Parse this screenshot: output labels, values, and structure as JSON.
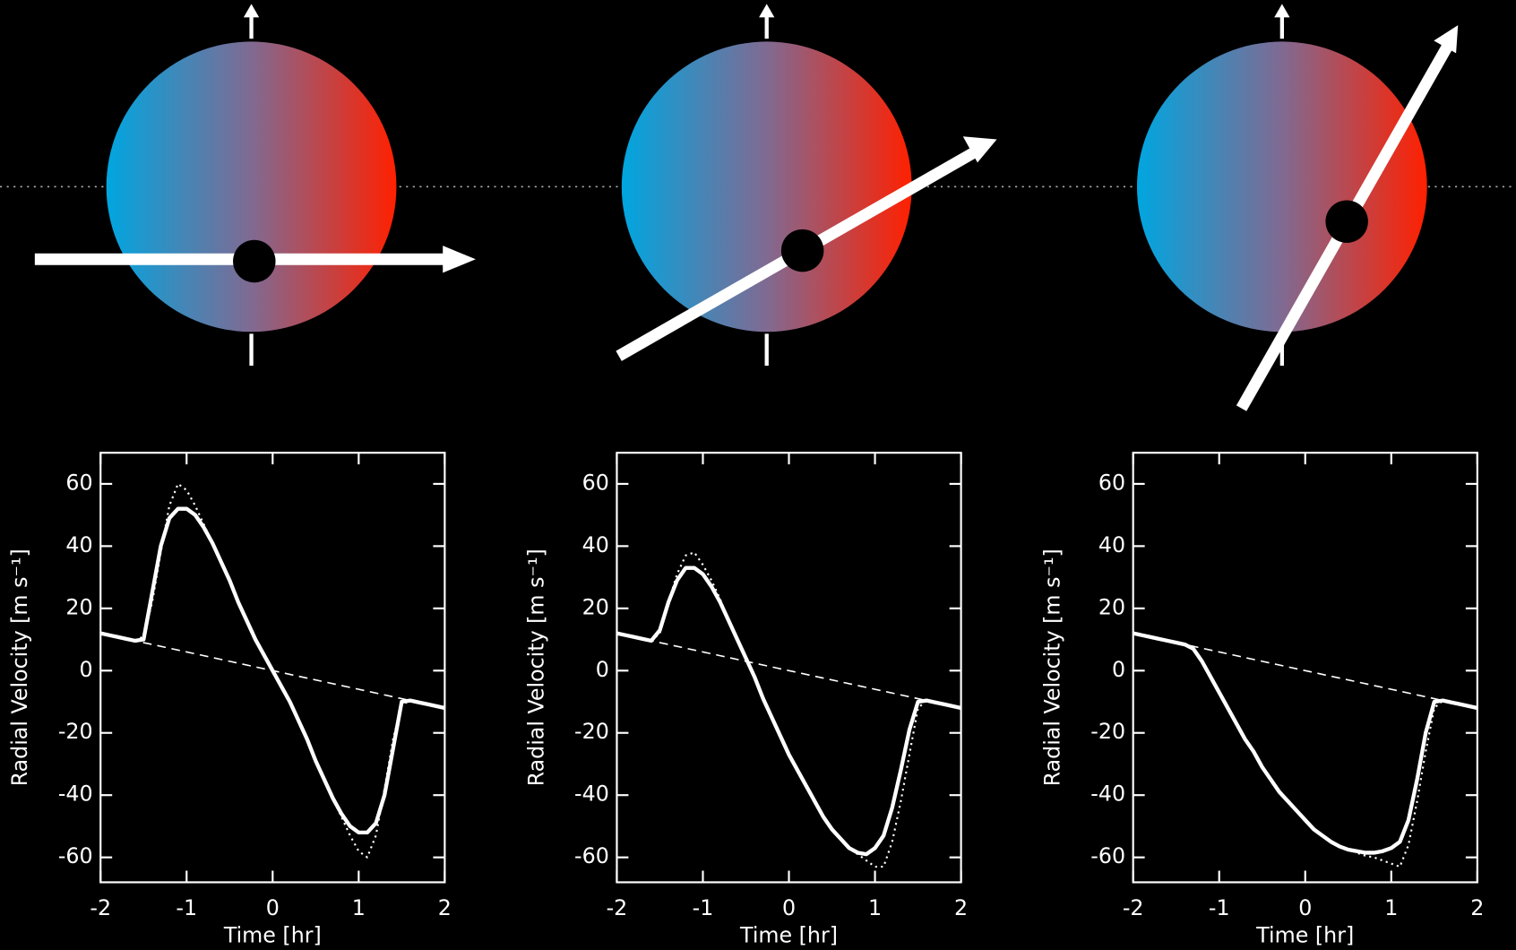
{
  "chart_data": [
    {
      "type": "line",
      "xlabel": "Time [hr]",
      "ylabel": "Radial Velocity [m s⁻¹]",
      "xlim": [
        -2,
        2
      ],
      "ylim": [
        -68,
        70
      ],
      "xticks": [
        -2,
        -1,
        0,
        1,
        2
      ],
      "yticks": [
        -60,
        -40,
        -20,
        0,
        20,
        40,
        60
      ],
      "series": [
        {
          "style": "dashed",
          "color": "#ffffff",
          "x": [
            -2,
            2
          ],
          "values": [
            12,
            -12
          ]
        },
        {
          "style": "dotted",
          "color": "#ffffff",
          "x": [
            -1.6,
            -1.5,
            -1.4,
            -1.3,
            -1.2,
            -1.1,
            -1.0,
            -0.9,
            -0.8,
            -0.7,
            -0.6,
            -0.5,
            -0.4,
            -0.3,
            -0.2,
            -0.1,
            0,
            0.1,
            0.2,
            0.3,
            0.4,
            0.5,
            0.6,
            0.7,
            0.8,
            0.9,
            1.0,
            1.1,
            1.2,
            1.3,
            1.4,
            1.5,
            1.6
          ],
          "values": [
            9.6,
            11,
            22,
            38,
            53,
            60,
            58,
            53,
            47,
            41,
            35,
            29,
            22,
            16,
            10,
            5,
            0,
            -5,
            -10,
            -16,
            -22,
            -29,
            -35,
            -41,
            -47,
            -53,
            -58,
            -60,
            -53,
            -38,
            -22,
            -11,
            -9.6
          ]
        },
        {
          "style": "solid",
          "color": "#ffffff",
          "x": [
            -2,
            -1.9,
            -1.8,
            -1.7,
            -1.6,
            -1.5,
            -1.4,
            -1.3,
            -1.2,
            -1.1,
            -1.0,
            -0.9,
            -0.8,
            -0.7,
            -0.6,
            -0.5,
            -0.4,
            -0.3,
            -0.2,
            -0.1,
            0,
            0.1,
            0.2,
            0.3,
            0.4,
            0.5,
            0.6,
            0.7,
            0.8,
            0.9,
            1.0,
            1.1,
            1.2,
            1.3,
            1.4,
            1.5,
            1.6,
            1.7,
            1.8,
            1.9,
            2
          ],
          "values": [
            12,
            11.4,
            10.8,
            10.2,
            9.6,
            10,
            25,
            40,
            49,
            52,
            52,
            50,
            46,
            41,
            35,
            29,
            22,
            16,
            10,
            5,
            0,
            -5,
            -10,
            -16,
            -22,
            -29,
            -35,
            -41,
            -46,
            -50,
            -52,
            -52,
            -49,
            -40,
            -25,
            -10,
            -9.6,
            -10.2,
            -10.8,
            -11.4,
            -12
          ]
        }
      ]
    },
    {
      "type": "line",
      "xlabel": "Time [hr]",
      "ylabel": "Radial Velocity [m s⁻¹]",
      "xlim": [
        -2,
        2
      ],
      "ylim": [
        -68,
        70
      ],
      "xticks": [
        -2,
        -1,
        0,
        1,
        2
      ],
      "yticks": [
        -60,
        -40,
        -20,
        0,
        20,
        40,
        60
      ],
      "series": [
        {
          "style": "dashed",
          "color": "#ffffff",
          "x": [
            -2,
            2
          ],
          "values": [
            12,
            -12
          ]
        },
        {
          "style": "dotted",
          "color": "#ffffff",
          "x": [
            -1.6,
            -1.5,
            -1.4,
            -1.3,
            -1.2,
            -1.1,
            -1.0,
            -0.9,
            -0.8,
            -0.7,
            -0.6,
            -0.5,
            -0.4,
            -0.3,
            -0.2,
            -0.1,
            0,
            0.1,
            0.2,
            0.3,
            0.4,
            0.5,
            0.6,
            0.7,
            0.8,
            0.9,
            1.0,
            1.1,
            1.2,
            1.3,
            1.4,
            1.5,
            1.6
          ],
          "values": [
            9.6,
            12,
            22,
            31,
            37,
            38,
            34,
            29,
            23,
            16,
            10,
            4,
            -2,
            -9,
            -15,
            -21,
            -27,
            -32,
            -37,
            -42,
            -47,
            -51,
            -54,
            -57,
            -59,
            -61,
            -63,
            -63,
            -55,
            -42,
            -27,
            -12,
            -9.6
          ]
        },
        {
          "style": "solid",
          "color": "#ffffff",
          "x": [
            -2,
            -1.9,
            -1.8,
            -1.7,
            -1.6,
            -1.5,
            -1.4,
            -1.3,
            -1.2,
            -1.1,
            -1.0,
            -0.9,
            -0.8,
            -0.7,
            -0.6,
            -0.5,
            -0.4,
            -0.3,
            -0.2,
            -0.1,
            0,
            0.1,
            0.2,
            0.3,
            0.4,
            0.5,
            0.6,
            0.7,
            0.8,
            0.9,
            1.0,
            1.1,
            1.2,
            1.3,
            1.4,
            1.5,
            1.6,
            1.7,
            1.8,
            1.9,
            2
          ],
          "values": [
            12,
            11.4,
            10.8,
            10.2,
            9.6,
            13,
            22,
            29,
            33,
            33,
            31,
            27,
            22,
            16,
            10,
            4,
            -2,
            -9,
            -15,
            -21,
            -27,
            -32,
            -37,
            -42,
            -47,
            -51,
            -54,
            -57,
            -58.5,
            -59,
            -57,
            -53,
            -44,
            -32,
            -19,
            -10,
            -9.6,
            -10.2,
            -10.8,
            -11.4,
            -12
          ]
        }
      ]
    },
    {
      "type": "line",
      "xlabel": "Time [hr]",
      "ylabel": "Radial Velocity [m s⁻¹]",
      "xlim": [
        -2,
        2
      ],
      "ylim": [
        -68,
        70
      ],
      "xticks": [
        -2,
        -1,
        0,
        1,
        2
      ],
      "yticks": [
        -60,
        -40,
        -20,
        0,
        20,
        40,
        60
      ],
      "series": [
        {
          "style": "dashed",
          "color": "#ffffff",
          "x": [
            -2,
            2
          ],
          "values": [
            12,
            -12
          ]
        },
        {
          "style": "dotted",
          "color": "#ffffff",
          "x": [
            -1.6,
            -1.5,
            -1.4,
            -1.3,
            -1.2,
            -1.1,
            -1.0,
            -0.9,
            -0.8,
            -0.7,
            -0.6,
            -0.5,
            -0.4,
            -0.3,
            -0.2,
            -0.1,
            0,
            0.1,
            0.2,
            0.3,
            0.4,
            0.5,
            0.6,
            0.7,
            0.8,
            0.9,
            1.0,
            1.1,
            1.2,
            1.3,
            1.4,
            1.5,
            1.6
          ],
          "values": [
            9.6,
            9,
            8.4,
            7,
            3,
            -2,
            -7,
            -12,
            -17,
            -22,
            -26,
            -31,
            -35,
            -39,
            -42,
            -45,
            -48,
            -51,
            -53,
            -55,
            -56.5,
            -57.5,
            -58.5,
            -59.5,
            -60,
            -61,
            -62,
            -63,
            -56,
            -42,
            -26,
            -12,
            -9.6
          ]
        },
        {
          "style": "solid",
          "color": "#ffffff",
          "x": [
            -2,
            -1.9,
            -1.8,
            -1.7,
            -1.6,
            -1.5,
            -1.4,
            -1.3,
            -1.2,
            -1.1,
            -1.0,
            -0.9,
            -0.8,
            -0.7,
            -0.6,
            -0.5,
            -0.4,
            -0.3,
            -0.2,
            -0.1,
            0,
            0.1,
            0.2,
            0.3,
            0.4,
            0.5,
            0.6,
            0.7,
            0.8,
            0.9,
            1.0,
            1.1,
            1.2,
            1.3,
            1.4,
            1.5,
            1.6,
            1.7,
            1.8,
            1.9,
            2
          ],
          "values": [
            12,
            11.4,
            10.8,
            10.2,
            9.6,
            9,
            8.4,
            7,
            3,
            -2,
            -7,
            -12,
            -17,
            -22,
            -26,
            -31,
            -35,
            -39,
            -42,
            -45,
            -48,
            -51,
            -53,
            -55,
            -56.5,
            -57.5,
            -58,
            -58.5,
            -58.5,
            -58,
            -57,
            -55,
            -48,
            -35,
            -20,
            -10,
            -9.6,
            -10.2,
            -10.8,
            -11.4,
            -12
          ]
        }
      ]
    }
  ]
}
